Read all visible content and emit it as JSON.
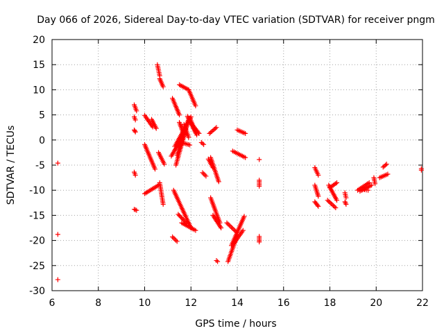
{
  "chart_data": {
    "type": "scatter",
    "title": "Day 066 of 2026, Sidereal Day-to-day VTEC variation (SDTVAR) for receiver pngm",
    "xlabel": "GPS time / hours",
    "ylabel": "SDTVAR / TECUs",
    "xlim": [
      6,
      22
    ],
    "ylim": [
      -30,
      20
    ],
    "xticks": [
      6,
      8,
      10,
      12,
      14,
      16,
      18,
      20,
      22
    ],
    "yticks": [
      -30,
      -25,
      -20,
      -15,
      -10,
      -5,
      0,
      5,
      10,
      15,
      20
    ],
    "grid": true,
    "marker": "plus",
    "color": "#ff0000",
    "tracks": [
      {
        "x": [
          6.25,
          6.25
        ],
        "y": [
          -4.6,
          -4.6
        ]
      },
      {
        "x": [
          6.25,
          6.25
        ],
        "y": [
          -18.8,
          -18.8
        ]
      },
      {
        "x": [
          6.25,
          6.25
        ],
        "y": [
          -27.8,
          -27.8
        ]
      },
      {
        "x": [
          9.55,
          9.65
        ],
        "y": [
          7.0,
          5.8
        ]
      },
      {
        "x": [
          9.55,
          9.6
        ],
        "y": [
          4.6,
          4.0
        ]
      },
      {
        "x": [
          9.55,
          9.6
        ],
        "y": [
          2.0,
          1.6
        ]
      },
      {
        "x": [
          9.55,
          9.6
        ],
        "y": [
          -6.4,
          -7.0
        ]
      },
      {
        "x": [
          9.55,
          9.65
        ],
        "y": [
          -13.8,
          -14.0
        ]
      },
      {
        "x": [
          10.0,
          10.35
        ],
        "y": [
          4.9,
          2.6
        ]
      },
      {
        "x": [
          10.3,
          10.5
        ],
        "y": [
          4.1,
          2.3
        ]
      },
      {
        "x": [
          10.0,
          10.45
        ],
        "y": [
          -0.9,
          -5.8
        ]
      },
      {
        "x": [
          10.0,
          10.6
        ],
        "y": [
          -10.7,
          -9.0
        ]
      },
      {
        "x": [
          10.6,
          10.85
        ],
        "y": [
          -2.5,
          -4.8
        ]
      },
      {
        "x": [
          10.65,
          10.8
        ],
        "y": [
          -8.5,
          -12.8
        ]
      },
      {
        "x": [
          10.55,
          10.65
        ],
        "y": [
          15.0,
          12.8
        ]
      },
      {
        "x": [
          10.65,
          10.8
        ],
        "y": [
          12.2,
          10.6
        ]
      },
      {
        "x": [
          11.2,
          11.5
        ],
        "y": [
          8.3,
          5.0
        ]
      },
      {
        "x": [
          11.5,
          11.9
        ],
        "y": [
          11.0,
          10.0
        ]
      },
      {
        "x": [
          11.9,
          12.2
        ],
        "y": [
          10.0,
          6.8
        ]
      },
      {
        "x": [
          11.15,
          11.75
        ],
        "y": [
          -3.2,
          1.5
        ]
      },
      {
        "x": [
          11.3,
          12.0
        ],
        "y": [
          -1.3,
          4.6
        ]
      },
      {
        "x": [
          11.35,
          11.9
        ],
        "y": [
          -5.0,
          4.2
        ]
      },
      {
        "x": [
          11.4,
          11.9
        ],
        "y": [
          -3.0,
          3.9
        ]
      },
      {
        "x": [
          11.5,
          11.7
        ],
        "y": [
          3.5,
          1.0
        ]
      },
      {
        "x": [
          11.7,
          11.9
        ],
        "y": [
          3.1,
          0.5
        ]
      },
      {
        "x": [
          11.85,
          12.2
        ],
        "y": [
          4.7,
          1.5
        ]
      },
      {
        "x": [
          11.95,
          12.25
        ],
        "y": [
          4.4,
          1.0
        ]
      },
      {
        "x": [
          12.0,
          12.35
        ],
        "y": [
          3.4,
          1.3
        ]
      },
      {
        "x": [
          11.6,
          11.95
        ],
        "y": [
          -0.5,
          -1.0
        ]
      },
      {
        "x": [
          11.25,
          12.0
        ],
        "y": [
          -10.0,
          -17.5
        ]
      },
      {
        "x": [
          11.45,
          11.8
        ],
        "y": [
          -14.8,
          -16.5
        ]
      },
      {
        "x": [
          11.6,
          12.2
        ],
        "y": [
          -16.5,
          -18.0
        ]
      },
      {
        "x": [
          11.2,
          11.4
        ],
        "y": [
          -19.3,
          -20.2
        ]
      },
      {
        "x": [
          12.45,
          12.55
        ],
        "y": [
          -0.5,
          -0.9
        ]
      },
      {
        "x": [
          12.8,
          13.1
        ],
        "y": [
          1.3,
          2.5
        ]
      },
      {
        "x": [
          12.75,
          12.95
        ],
        "y": [
          -3.8,
          -5.5
        ]
      },
      {
        "x": [
          12.85,
          13.2
        ],
        "y": [
          -3.5,
          -8.3
        ]
      },
      {
        "x": [
          12.5,
          12.65
        ],
        "y": [
          -6.5,
          -7.2
        ]
      },
      {
        "x": [
          12.85,
          13.25
        ],
        "y": [
          -11.5,
          -16.5
        ]
      },
      {
        "x": [
          12.95,
          13.3
        ],
        "y": [
          -15.0,
          -17.5
        ]
      },
      {
        "x": [
          13.1,
          13.15
        ],
        "y": [
          -24.0,
          -24.2
        ]
      },
      {
        "x": [
          13.55,
          14.0
        ],
        "y": [
          -16.5,
          -18.5
        ]
      },
      {
        "x": [
          13.6,
          14.0
        ],
        "y": [
          -24.2,
          -19.0
        ]
      },
      {
        "x": [
          13.75,
          14.3
        ],
        "y": [
          -21.0,
          -15.2
        ]
      },
      {
        "x": [
          13.85,
          14.25
        ],
        "y": [
          -20.6,
          -18.0
        ]
      },
      {
        "x": [
          14.0,
          14.35
        ],
        "y": [
          2.0,
          1.3
        ]
      },
      {
        "x": [
          13.8,
          14.35
        ],
        "y": [
          -2.2,
          -3.5
        ]
      },
      {
        "x": [
          14.95,
          14.95
        ],
        "y": [
          -3.9,
          -3.9
        ]
      },
      {
        "x": [
          14.95,
          14.95
        ],
        "y": [
          -8.0,
          -9.2
        ]
      },
      {
        "x": [
          14.95,
          14.95
        ],
        "y": [
          -19.2,
          -20.3
        ]
      },
      {
        "x": [
          17.35,
          17.5
        ],
        "y": [
          -5.5,
          -7.0
        ]
      },
      {
        "x": [
          17.35,
          17.5
        ],
        "y": [
          -9.0,
          -11.2
        ]
      },
      {
        "x": [
          17.35,
          17.5
        ],
        "y": [
          -12.3,
          -13.2
        ]
      },
      {
        "x": [
          17.95,
          18.3
        ],
        "y": [
          -9.0,
          -12.0
        ]
      },
      {
        "x": [
          17.9,
          18.25
        ],
        "y": [
          -12.0,
          -13.5
        ]
      },
      {
        "x": [
          18.0,
          18.3
        ],
        "y": [
          -9.5,
          -8.5
        ]
      },
      {
        "x": [
          18.65,
          18.7
        ],
        "y": [
          -10.5,
          -11.5
        ]
      },
      {
        "x": [
          18.65,
          18.7
        ],
        "y": [
          -12.3,
          -12.8
        ]
      },
      {
        "x": [
          19.2,
          19.7
        ],
        "y": [
          -10.0,
          -8.5
        ]
      },
      {
        "x": [
          19.3,
          19.8
        ],
        "y": [
          -10.2,
          -9.0
        ]
      },
      {
        "x": [
          19.5,
          19.65
        ],
        "y": [
          -9.9,
          -10.0
        ]
      },
      {
        "x": [
          19.9,
          19.95
        ],
        "y": [
          -7.5,
          -8.7
        ]
      },
      {
        "x": [
          20.15,
          20.5
        ],
        "y": [
          -7.5,
          -6.8
        ]
      },
      {
        "x": [
          20.3,
          20.45
        ],
        "y": [
          -5.4,
          -4.8
        ]
      },
      {
        "x": [
          21.95,
          21.95
        ],
        "y": [
          -5.7,
          -6.0
        ]
      }
    ]
  }
}
